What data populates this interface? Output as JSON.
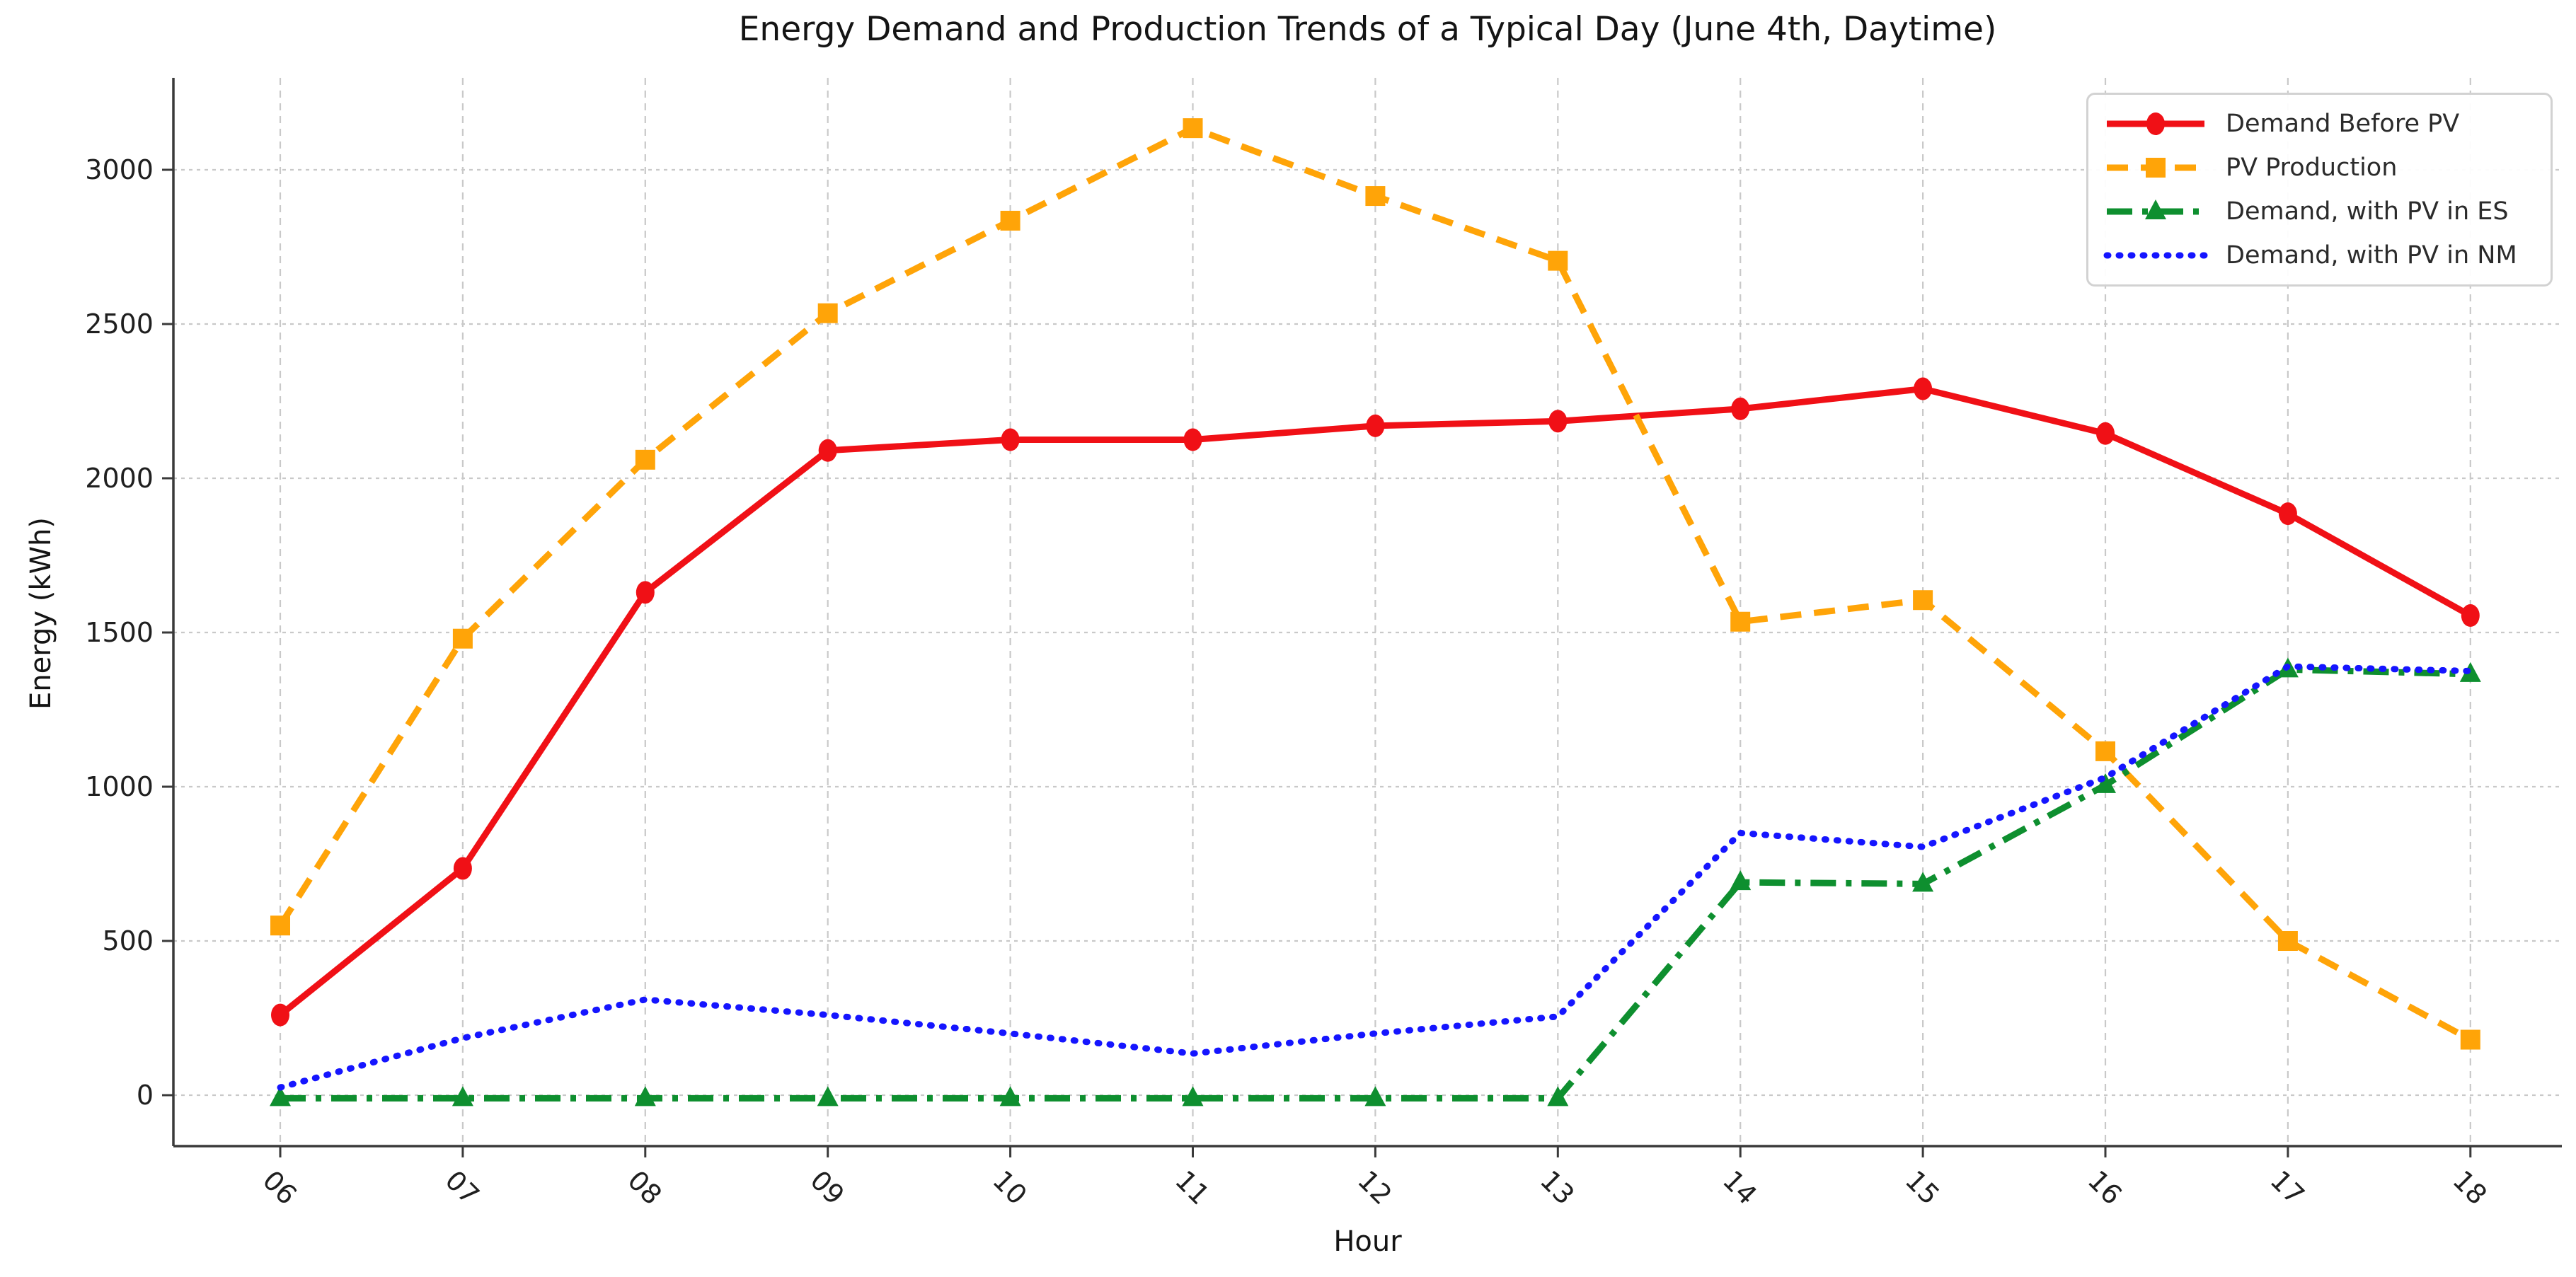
{
  "figure": {
    "title": "Energy Demand and Production Trends of a Typical Day (June 4th, Daytime)",
    "xlabel": "Hour",
    "ylabel": "Energy (kWh)"
  },
  "chart_data": {
    "type": "line",
    "title": "Energy Demand and Production Trends of a Typical Day (June 4th, Daytime)",
    "xlabel": "Hour",
    "ylabel": "Energy (kWh)",
    "x": [
      "06",
      "07",
      "08",
      "09",
      "10",
      "11",
      "12",
      "13",
      "14",
      "15",
      "16",
      "17",
      "18"
    ],
    "yticks": [
      0,
      500,
      1000,
      1500,
      2000,
      2500,
      3000
    ],
    "ylim": [
      -165,
      3300
    ],
    "grid": true,
    "legend_position": "upper right",
    "colors": {
      "grid": "#c9c9c9",
      "spine": "#3a3a3a",
      "tick_label": "#1f1f1f"
    },
    "series": [
      {
        "name": "Demand Before PV",
        "color": "#f01016",
        "line_style": "solid",
        "marker": "circle",
        "values": [
          260,
          735,
          1630,
          2090,
          2125,
          2125,
          2170,
          2185,
          2225,
          2290,
          2145,
          1885,
          1555
        ]
      },
      {
        "name": "PV Production",
        "color": "#ffa408",
        "line_style": "dashed",
        "marker": "square",
        "values": [
          550,
          1480,
          2060,
          2535,
          2835,
          3135,
          2915,
          2705,
          1535,
          1605,
          1115,
          500,
          180
        ]
      },
      {
        "name": "Demand, with PV in ES",
        "color": "#0e8f2f",
        "line_style": "dashdot",
        "marker": "triangle",
        "values": [
          -10,
          -10,
          -10,
          -10,
          -10,
          -10,
          -10,
          -10,
          690,
          685,
          1005,
          1380,
          1365
        ]
      },
      {
        "name": "Demand, with PV in NM",
        "color": "#1515ff",
        "line_style": "dotted",
        "marker": "none",
        "values": [
          25,
          185,
          310,
          260,
          200,
          135,
          200,
          255,
          850,
          805,
          1030,
          1390,
          1375
        ]
      }
    ]
  }
}
